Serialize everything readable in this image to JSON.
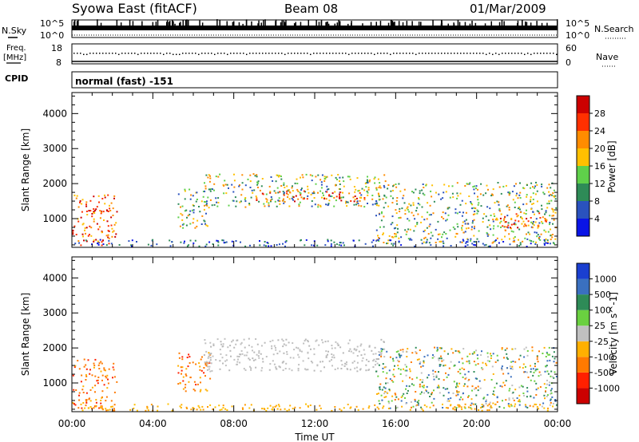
{
  "header": {
    "station": "Syowa East (fitACF)",
    "beam": "Beam 08",
    "date": "01/Mar/2009"
  },
  "strips": {
    "nsky_label": "N.Sky",
    "nsky_top": "10^5",
    "nsky_bottom": "10^0",
    "nsearch_label": "N.Search",
    "nsearch_top": "10^5",
    "nsearch_bottom": "10^0",
    "freq_label_1": "Freq.",
    "freq_label_2": "[MHz]",
    "freq_top": "18",
    "freq_bottom": "8",
    "nave_label": "Nave",
    "nave_top": "60",
    "nave_bottom": "0",
    "cpid_label": "CPID",
    "cpid_value": "normal (fast) -151"
  },
  "chart_data": [
    {
      "type": "heatmap",
      "panel": "power",
      "ylabel": "Slant Range [km]",
      "xlabel": "Time UT",
      "x_ticks": [
        "00:00",
        "04:00",
        "08:00",
        "12:00",
        "16:00",
        "20:00",
        "00:00"
      ],
      "y_ticks": [
        1000,
        2000,
        3000,
        4000
      ],
      "ylim": [
        180,
        4600
      ],
      "xlim_hours": [
        0,
        24
      ],
      "colorbar": {
        "label": "Power [dB]",
        "ticks": [
          "4",
          "8",
          "12",
          "16",
          "20",
          "24",
          "28"
        ],
        "colors": [
          "#0a14e6",
          "#2a52be",
          "#2e8b57",
          "#5fd04a",
          "#ffc000",
          "#ff8c00",
          "#ff3000",
          "#cc0000"
        ]
      },
      "regions": [
        {
          "t0": 0.0,
          "t1": 2.2,
          "r0": 200,
          "r1": 1700,
          "level": "high"
        },
        {
          "t0": 1.0,
          "t1": 2.0,
          "r0": 250,
          "r1": 420,
          "level": "max"
        },
        {
          "t0": 5.2,
          "t1": 6.8,
          "r0": 750,
          "r1": 1900,
          "level": "mid"
        },
        {
          "t0": 6.5,
          "t1": 15.5,
          "r0": 1350,
          "r1": 2300,
          "level": "mid"
        },
        {
          "t0": 9.0,
          "t1": 14.5,
          "r0": 1500,
          "r1": 1850,
          "level": "high"
        },
        {
          "t0": 15.0,
          "t1": 24.0,
          "r0": 300,
          "r1": 2050,
          "level": "mid"
        },
        {
          "t0": 21.0,
          "t1": 23.5,
          "r0": 750,
          "r1": 1200,
          "level": "high"
        },
        {
          "t0": 0.0,
          "t1": 24.0,
          "r0": 200,
          "r1": 420,
          "level": "low"
        }
      ]
    },
    {
      "type": "heatmap",
      "panel": "velocity",
      "ylabel": "Slant Range [km]",
      "xlabel": "Time UT",
      "x_ticks": [
        "00:00",
        "04:00",
        "08:00",
        "12:00",
        "16:00",
        "20:00",
        "00:00"
      ],
      "y_ticks": [
        1000,
        2000,
        3000,
        4000
      ],
      "ylim": [
        180,
        4600
      ],
      "xlim_hours": [
        0,
        24
      ],
      "colorbar": {
        "label": "Velocity [m s^-1]",
        "ticks": [
          "1000",
          "500",
          "100",
          "25",
          "-25",
          "-100",
          "-500",
          "-1000"
        ],
        "colors": [
          "#1a3fd0",
          "#3a70c0",
          "#2e8b57",
          "#6ad040",
          "#c0c0c0",
          "#ffb000",
          "#ff7a00",
          "#ff2000",
          "#cc0000"
        ]
      },
      "regions": [
        {
          "t0": 0.0,
          "t1": 2.2,
          "r0": 200,
          "r1": 1700,
          "level": "neg"
        },
        {
          "t0": 5.2,
          "t1": 6.8,
          "r0": 750,
          "r1": 1900,
          "level": "neg"
        },
        {
          "t0": 6.5,
          "t1": 15.5,
          "r0": 1350,
          "r1": 2300,
          "level": "ground"
        },
        {
          "t0": 15.0,
          "t1": 24.0,
          "r0": 300,
          "r1": 2050,
          "level": "mixed"
        },
        {
          "t0": 0.0,
          "t1": 24.0,
          "r0": 200,
          "r1": 420,
          "level": "lowneg"
        }
      ]
    }
  ]
}
